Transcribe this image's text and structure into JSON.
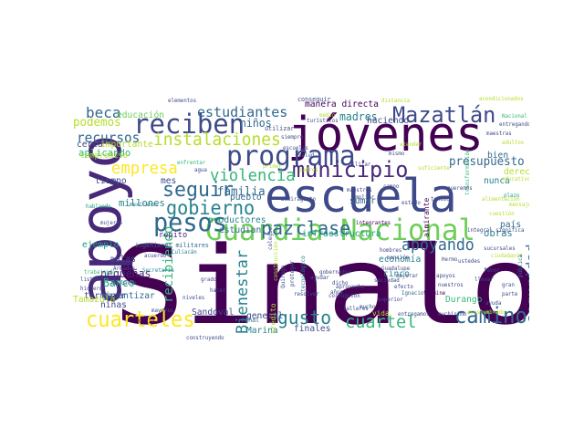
{
  "palette": {
    "deep_purple": "#440154",
    "purple": "#482878",
    "indigo": "#3e4a89",
    "slate_blue": "#31688e",
    "teal": "#26828e",
    "green_teal": "#1f9e89",
    "green": "#35b779",
    "light_green": "#6ece58",
    "lime": "#b5de2b",
    "yellow": "#fde725"
  },
  "words": [
    {
      "text": "Sinaloa",
      "color": "#440154"
    },
    {
      "text": "escuela",
      "color": "#3e4a89"
    },
    {
      "text": "jóvenes",
      "color": "#440154"
    },
    {
      "text": "apoyo",
      "color": "#482878"
    },
    {
      "text": "Guardia Nacional",
      "color": "#6ece58"
    },
    {
      "text": "programa",
      "color": "#3e4a89"
    },
    {
      "text": "reciben",
      "color": "#3e4a89"
    },
    {
      "text": "pesos",
      "color": "#31688e"
    },
    {
      "text": "Mazatlán",
      "color": "#3e4a89"
    },
    {
      "text": "municipio",
      "color": "#482878"
    },
    {
      "text": "cuarteles",
      "color": "#fde725"
    },
    {
      "text": "camino",
      "color": "#31688e"
    },
    {
      "text": "seguir",
      "color": "#31688e"
    },
    {
      "text": "gobierno",
      "color": "#26828e"
    },
    {
      "text": "instalaciones",
      "color": "#b5de2b"
    },
    {
      "text": "apoyando",
      "color": "#31688e"
    },
    {
      "text": "gusto",
      "color": "#26828e"
    },
    {
      "text": "cuartel",
      "color": "#35b779"
    },
    {
      "text": "violencia",
      "color": "#35b779"
    },
    {
      "text": "estudiantes",
      "color": "#31688e"
    },
    {
      "text": "beca",
      "color": "#31688e"
    },
    {
      "text": "empresa",
      "color": "#fde725"
    },
    {
      "text": "paz",
      "color": "#31688e"
    },
    {
      "text": "clase",
      "color": "#31688e"
    },
    {
      "text": "Bienestar",
      "color": "#26828e"
    },
    {
      "text": "seguridad",
      "color": "#31688e"
    },
    {
      "text": "recursos",
      "color": "#31688e"
    },
    {
      "text": "podemos",
      "color": "#b5de2b"
    },
    {
      "text": "presupuesto",
      "color": "#31688e"
    },
    {
      "text": "recibiendo",
      "color": "#35b779"
    },
    {
      "text": "familia",
      "color": "#31688e"
    },
    {
      "text": "madres",
      "color": "#26828e"
    },
    {
      "text": "niños",
      "color": "#31688e"
    },
    {
      "text": "pequeñas",
      "color": "#482878"
    },
    {
      "text": "infraestructura",
      "color": "#1f9e89"
    },
    {
      "text": "obras",
      "color": "#26828e"
    },
    {
      "text": "Banco",
      "color": "#1f9e89"
    },
    {
      "text": "millones",
      "color": "#26828e"
    },
    {
      "text": "aplicando",
      "color": "#35b779"
    },
    {
      "text": "derecho",
      "color": "#b5de2b"
    },
    {
      "text": "pueblo",
      "color": "#31688e"
    },
    {
      "text": "Marina",
      "color": "#26828e"
    },
    {
      "text": "Sandoval",
      "color": "#3e4a89"
    },
    {
      "text": "terminar",
      "color": "#3e4a89"
    },
    {
      "text": "garantizar",
      "color": "#31688e"
    },
    {
      "text": "aulas",
      "color": "#3e4a89"
    },
    {
      "text": "ejemplo",
      "color": "#1f9e89"
    },
    {
      "text": "Durango",
      "color": "#35b779"
    },
    {
      "text": "país",
      "color": "#31688e"
    },
    {
      "text": "economía",
      "color": "#26828e"
    },
    {
      "text": "cinco",
      "color": "#26828e"
    },
    {
      "text": "cerca",
      "color": "#3e4a89"
    },
    {
      "text": "importante",
      "color": "#b5de2b"
    },
    {
      "text": "educación",
      "color": "#6ece58"
    },
    {
      "text": "tiempo",
      "color": "#3e4a89"
    },
    {
      "text": "mes",
      "color": "#3e4a89"
    },
    {
      "text": "sumar",
      "color": "#31688e"
    },
    {
      "text": "general",
      "color": "#3e4a89"
    },
    {
      "text": "productores",
      "color": "#26828e"
    },
    {
      "text": "estudian",
      "color": "#31688e"
    },
    {
      "text": "manera directa",
      "color": "#440154"
    },
    {
      "text": "haciendo",
      "color": "#3e4a89"
    },
    {
      "text": "Tamazula",
      "color": "#b5de2b"
    },
    {
      "text": "niñas",
      "color": "#3e4a89"
    },
    {
      "text": "compromiso",
      "color": "#b5de2b"
    },
    {
      "text": "repito",
      "color": "#482878"
    },
    {
      "text": "nunca",
      "color": "#26828e"
    },
    {
      "text": "bien",
      "color": "#31688e"
    },
    {
      "text": "ingenieros militares",
      "color": "#31688e"
    },
    {
      "text": "final",
      "color": "#31688e"
    },
    {
      "text": "finales",
      "color": "#3e4a89"
    },
    {
      "text": "vida",
      "color": "#b5de2b"
    },
    {
      "text": "utilizar",
      "color": "#3e4a89"
    },
    {
      "text": "conseguir",
      "color": "#3e4a89"
    },
    {
      "text": "distancia",
      "color": "#b5de2b"
    },
    {
      "text": "acondicionados",
      "color": "#b5de2b"
    },
    {
      "text": "Nacional",
      "color": "#35b779"
    },
    {
      "text": "entregando",
      "color": "#3e4a89"
    },
    {
      "text": "maestras",
      "color": "#3e4a89"
    },
    {
      "text": "adultos",
      "color": "#b5de2b"
    },
    {
      "text": "elementos",
      "color": "#3e4a89"
    },
    {
      "text": "medio",
      "color": "#b5de2b"
    },
    {
      "text": "transformación",
      "color": "#35b779"
    },
    {
      "text": "plazo",
      "color": "#1f9e89"
    },
    {
      "text": "mensaje",
      "color": "#b5de2b"
    },
    {
      "text": "educativo",
      "color": "#b5de2b"
    },
    {
      "text": "mujeres",
      "color": "#3e4a89"
    },
    {
      "text": "mexicanos",
      "color": "#26828e"
    },
    {
      "text": "hablando",
      "color": "#1f9e89"
    },
    {
      "text": "salud",
      "color": "#31688e"
    },
    {
      "text": "agua",
      "color": "#3e4a89"
    },
    {
      "text": "primer",
      "color": "#b5de2b"
    },
    {
      "text": "padres",
      "color": "#b5de2b"
    },
    {
      "text": "enfrentar",
      "color": "#35b779"
    },
    {
      "text": "Culiacán",
      "color": "#26828e"
    },
    {
      "text": "acuerdo",
      "color": "#3e4a89"
    },
    {
      "text": "Armadas",
      "color": "#3e4a89"
    },
    {
      "text": "Secretaría",
      "color": "#26828e"
    },
    {
      "text": "trabajando",
      "color": "#35b779"
    },
    {
      "text": "listón",
      "color": "#3e4a89"
    },
    {
      "text": "adelante",
      "color": "#3e4a89"
    },
    {
      "text": "hicieron",
      "color": "#3e4a89"
    },
    {
      "text": "integrantes",
      "color": "#440154"
    },
    {
      "text": "gobernador",
      "color": "#3e4a89"
    },
    {
      "text": "cuestión",
      "color": "#b5de2b"
    },
    {
      "text": "alimentación",
      "color": "#b5de2b"
    },
    {
      "text": "almirante",
      "color": "#440154"
    },
    {
      "text": "hombres",
      "color": "#3e4a89"
    },
    {
      "text": "pensión",
      "color": "#3e4a89"
    },
    {
      "text": "ayudar",
      "color": "#3e4a89"
    },
    {
      "text": "aprovecho",
      "color": "#3e4a89"
    },
    {
      "text": "Ignacio",
      "color": "#31688e"
    },
    {
      "text": "termine",
      "color": "#440154"
    },
    {
      "text": "corrupción",
      "color": "#3e4a89"
    },
    {
      "text": "superior",
      "color": "#3e4a89"
    },
    {
      "text": "mayores",
      "color": "#3e4a89"
    },
    {
      "text": "COVID",
      "color": "#440154"
    },
    {
      "text": "construyendo",
      "color": "#3e4a89"
    },
    {
      "text": "entregamos",
      "color": "#3e4a89"
    },
    {
      "text": "muchísimo",
      "color": "#3e4a89"
    },
    {
      "text": "acostumbrado",
      "color": "#b5de2b"
    },
    {
      "text": "integral significa",
      "color": "#3e4a89"
    },
    {
      "text": "sucursales",
      "color": "#3e4a89"
    },
    {
      "text": "ciudadanía",
      "color": "#b5de2b"
    },
    {
      "text": "pública",
      "color": "#31688e"
    },
    {
      "text": "favor",
      "color": "#3e4a89"
    },
    {
      "text": "Hermo",
      "color": "#3e4a89"
    },
    {
      "text": "mejorar",
      "color": "#3e4a89"
    },
    {
      "text": "efecto",
      "color": "#3e4a89"
    },
    {
      "text": "talleres",
      "color": "#3e4a89"
    },
    {
      "text": "sociedad",
      "color": "#3e4a89"
    },
    {
      "text": "Guadalupe",
      "color": "#3e4a89"
    },
    {
      "text": "mucho",
      "color": "#3e4a89"
    },
    {
      "text": "dicho",
      "color": "#3e4a89"
    },
    {
      "text": "años",
      "color": "#3e4a89"
    },
    {
      "text": "tecnológico",
      "color": "#26828e"
    },
    {
      "text": "construcción",
      "color": "#b5de2b"
    },
    {
      "text": "crédito",
      "color": "#b5de2b"
    },
    {
      "text": "proteger",
      "color": "#3e4a89"
    },
    {
      "text": "Quiroga",
      "color": "#3e4a89"
    },
    {
      "text": "colegio",
      "color": "#3e4a89"
    },
    {
      "text": "mismo",
      "color": "#3e4a89"
    },
    {
      "text": "maestros",
      "color": "#3e4a89"
    },
    {
      "text": "militar",
      "color": "#3e4a89"
    },
    {
      "text": "campo",
      "color": "#3e4a89"
    },
    {
      "text": "ampliar",
      "color": "#3e4a89"
    },
    {
      "text": "Badiraguato",
      "color": "#3e4a89"
    },
    {
      "text": "estado",
      "color": "#3e4a89"
    },
    {
      "text": "tenemos",
      "color": "#3e4a89"
    },
    {
      "text": "atender",
      "color": "#b5de2b"
    },
    {
      "text": "suficiente",
      "color": "#b5de2b"
    },
    {
      "text": "resolver",
      "color": "#3e4a89"
    },
    {
      "text": "queremos",
      "color": "#3e4a89"
    },
    {
      "text": "ustedes",
      "color": "#3e4a89"
    },
    {
      "text": "apoyos",
      "color": "#3e4a89"
    },
    {
      "text": "nuestros",
      "color": "#3e4a89"
    },
    {
      "text": "llevar",
      "color": "#3e4a89"
    },
    {
      "text": "gran",
      "color": "#3e4a89"
    },
    {
      "text": "parte",
      "color": "#3e4a89"
    },
    {
      "text": "ayuda",
      "color": "#3e4a89"
    },
    {
      "text": "grado",
      "color": "#3e4a89"
    },
    {
      "text": "hacer",
      "color": "#3e4a89"
    },
    {
      "text": "niveles",
      "color": "#3e4a89"
    },
    {
      "text": "turísticos",
      "color": "#3e4a89"
    },
    {
      "text": "siempre",
      "color": "#3e4a89"
    },
    {
      "text": "escuelas",
      "color": "#3e4a89"
    }
  ]
}
